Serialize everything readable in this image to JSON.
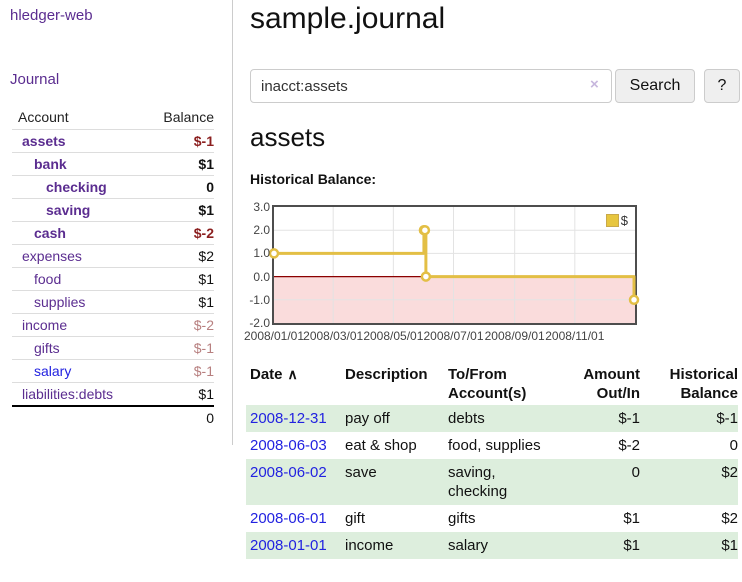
{
  "colors": {
    "link_purple": "#5b2d90",
    "link_blue": "#2222e0",
    "negative_strong": "#8b1f1f",
    "negative_muted": "#b77f7f",
    "row_stripe_green": "#ddeedd",
    "chart_line": "#e3bf45",
    "chart_negative_fill": "#fadcdc",
    "chart_zero_line": "#8b0000"
  },
  "sidebar": {
    "brand": "hledger-web",
    "journal_link": "Journal",
    "accounts_table": {
      "col_account": "Account",
      "col_balance": "Balance",
      "rows": [
        {
          "name": "assets",
          "balance": "$-1",
          "depth": 1,
          "bold": true,
          "balance_style": "neg-strong",
          "link_style": "purple"
        },
        {
          "name": "bank",
          "balance": "$1",
          "depth": 2,
          "bold": true,
          "balance_style": "pos",
          "link_style": "purple"
        },
        {
          "name": "checking",
          "balance": "0",
          "depth": 3,
          "bold": true,
          "balance_style": "pos",
          "link_style": "purple"
        },
        {
          "name": "saving",
          "balance": "$1",
          "depth": 3,
          "bold": true,
          "balance_style": "pos",
          "link_style": "purple"
        },
        {
          "name": "cash",
          "balance": "$-2",
          "depth": 2,
          "bold": true,
          "balance_style": "neg-strong",
          "link_style": "purple"
        },
        {
          "name": "expenses",
          "balance": "$2",
          "depth": 1,
          "bold": false,
          "balance_style": "pos",
          "link_style": "purple"
        },
        {
          "name": "food",
          "balance": "$1",
          "depth": 2,
          "bold": false,
          "balance_style": "pos",
          "link_style": "purple"
        },
        {
          "name": "supplies",
          "balance": "$1",
          "depth": 2,
          "bold": false,
          "balance_style": "pos",
          "link_style": "purple"
        },
        {
          "name": "income",
          "balance": "$-2",
          "depth": 1,
          "bold": false,
          "balance_style": "neg-muted",
          "link_style": "purple"
        },
        {
          "name": "gifts",
          "balance": "$-1",
          "depth": 2,
          "bold": false,
          "balance_style": "neg-muted",
          "link_style": "purple"
        },
        {
          "name": "salary",
          "balance": "$-1",
          "depth": 2,
          "bold": false,
          "balance_style": "neg-muted",
          "link_style": "blue"
        },
        {
          "name": "liabilities:debts",
          "balance": "$1",
          "depth": 1,
          "bold": false,
          "balance_style": "pos",
          "link_style": "purple"
        }
      ],
      "total": "0"
    }
  },
  "main": {
    "title": "sample.journal",
    "search": {
      "value": "inacct:assets",
      "clear_icon": "×",
      "search_button": "Search",
      "help_button": "?"
    },
    "account_heading": "assets",
    "chart_heading": "Historical Balance:"
  },
  "chart_data": {
    "type": "line",
    "title": "Historical Balance of assets",
    "step": true,
    "ylim": [
      -2,
      3
    ],
    "y_ticks": [
      "3.0",
      "2.0",
      "1.0",
      "0.0",
      "-1.0",
      "-2.0"
    ],
    "y_tick_values": [
      3,
      2,
      1,
      0,
      -1,
      -2
    ],
    "x_ticks": [
      "2008/01/01",
      "2008/03/01",
      "2008/05/01",
      "2008/07/01",
      "2008/09/01",
      "2008/11/01"
    ],
    "x_range": [
      "2008-01-01",
      "2009-01-01"
    ],
    "grid": true,
    "legend": [
      {
        "label": "$",
        "color": "#e7c63f"
      }
    ],
    "legend_position": "top-right",
    "negative_region_shaded": true,
    "series": [
      {
        "name": "$",
        "points": [
          {
            "date": "2008-01-01",
            "value": 1
          },
          {
            "date": "2008-06-01",
            "value": 2
          },
          {
            "date": "2008-06-02",
            "value": 2
          },
          {
            "date": "2008-06-03",
            "value": 0
          },
          {
            "date": "2008-12-31",
            "value": -1
          }
        ]
      }
    ]
  },
  "register": {
    "sort_icon": "∧",
    "headers": [
      {
        "line1": "Date",
        "line2": "",
        "align": "left",
        "sorted": true
      },
      {
        "line1": "Description",
        "line2": "",
        "align": "left",
        "sorted": false
      },
      {
        "line1": "To/From",
        "line2": "Account(s)",
        "align": "left",
        "sorted": false
      },
      {
        "line1": "Amount",
        "line2": "Out/In",
        "align": "right",
        "sorted": false
      },
      {
        "line1": "Historical",
        "line2": "Balance",
        "align": "right",
        "sorted": false
      }
    ],
    "rows": [
      {
        "date": "2008-12-31",
        "description": "pay off",
        "accounts": "debts",
        "amount": "$-1",
        "amount_neg": true,
        "balance": "$-1",
        "balance_neg": true,
        "stripe": true
      },
      {
        "date": "2008-06-03",
        "description": "eat & shop",
        "accounts": "food, supplies",
        "amount": "$-2",
        "amount_neg": true,
        "balance": "0",
        "balance_neg": false,
        "stripe": false
      },
      {
        "date": "2008-06-02",
        "description": "save",
        "accounts": "saving, checking",
        "amount": "0",
        "amount_neg": false,
        "balance": "$2",
        "balance_neg": false,
        "stripe": true
      },
      {
        "date": "2008-06-01",
        "description": "gift",
        "accounts": "gifts",
        "amount": "$1",
        "amount_neg": false,
        "balance": "$2",
        "balance_neg": false,
        "stripe": false
      },
      {
        "date": "2008-01-01",
        "description": "income",
        "accounts": "salary",
        "amount": "$1",
        "amount_neg": false,
        "balance": "$1",
        "balance_neg": false,
        "stripe": true
      }
    ]
  }
}
